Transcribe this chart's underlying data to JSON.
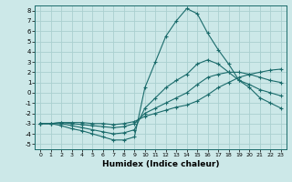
{
  "xlabel": "Humidex (Indice chaleur)",
  "bg_color": "#cce8e8",
  "grid_color": "#aacfcf",
  "line_color": "#1a6b6b",
  "xlim": [
    -0.5,
    23.5
  ],
  "ylim": [
    -5.5,
    8.5
  ],
  "xticks": [
    0,
    1,
    2,
    3,
    4,
    5,
    6,
    7,
    8,
    9,
    10,
    11,
    12,
    13,
    14,
    15,
    16,
    17,
    18,
    19,
    20,
    21,
    22,
    23
  ],
  "yticks": [
    -5,
    -4,
    -3,
    -2,
    -1,
    0,
    1,
    2,
    3,
    4,
    5,
    6,
    7,
    8
  ],
  "lines": [
    {
      "x": [
        0,
        1,
        2,
        3,
        4,
        5,
        6,
        7,
        8,
        9,
        10,
        11,
        12,
        13,
        14,
        15,
        16,
        17,
        18,
        19,
        20,
        21,
        22,
        23
      ],
      "y": [
        -3,
        -3,
        -3.2,
        -3.5,
        -3.7,
        -4.0,
        -4.3,
        -4.6,
        -4.6,
        -4.3,
        0.5,
        3.0,
        5.5,
        7.0,
        8.2,
        7.7,
        5.8,
        4.2,
        2.8,
        1.2,
        0.5,
        -0.5,
        -1.0,
        -1.5
      ]
    },
    {
      "x": [
        0,
        1,
        2,
        3,
        4,
        5,
        6,
        7,
        8,
        9,
        10,
        11,
        12,
        13,
        14,
        15,
        16,
        17,
        18,
        19,
        20,
        21,
        22,
        23
      ],
      "y": [
        -3,
        -3,
        -3.0,
        -3.2,
        -3.4,
        -3.6,
        -3.8,
        -4.0,
        -3.9,
        -3.6,
        -1.5,
        -0.5,
        0.5,
        1.2,
        1.8,
        2.8,
        3.2,
        2.8,
        2.0,
        1.2,
        0.8,
        0.3,
        0.0,
        -0.3
      ]
    },
    {
      "x": [
        0,
        1,
        2,
        3,
        4,
        5,
        6,
        7,
        8,
        9,
        10,
        11,
        12,
        13,
        14,
        15,
        16,
        17,
        18,
        19,
        20,
        21,
        22,
        23
      ],
      "y": [
        -3,
        -3,
        -2.9,
        -3.0,
        -3.1,
        -3.2,
        -3.3,
        -3.4,
        -3.3,
        -3.0,
        -2.0,
        -1.5,
        -1.0,
        -0.5,
        0.0,
        0.8,
        1.5,
        1.8,
        2.0,
        2.0,
        1.8,
        1.5,
        1.2,
        1.0
      ]
    },
    {
      "x": [
        0,
        1,
        2,
        3,
        4,
        5,
        6,
        7,
        8,
        9,
        10,
        11,
        12,
        13,
        14,
        15,
        16,
        17,
        18,
        19,
        20,
        21,
        22,
        23
      ],
      "y": [
        -3,
        -3,
        -2.9,
        -2.9,
        -2.9,
        -3.0,
        -3.0,
        -3.1,
        -3.0,
        -2.8,
        -2.3,
        -2.0,
        -1.7,
        -1.4,
        -1.2,
        -0.8,
        -0.2,
        0.5,
        1.0,
        1.5,
        1.8,
        2.0,
        2.2,
        2.3
      ]
    }
  ]
}
